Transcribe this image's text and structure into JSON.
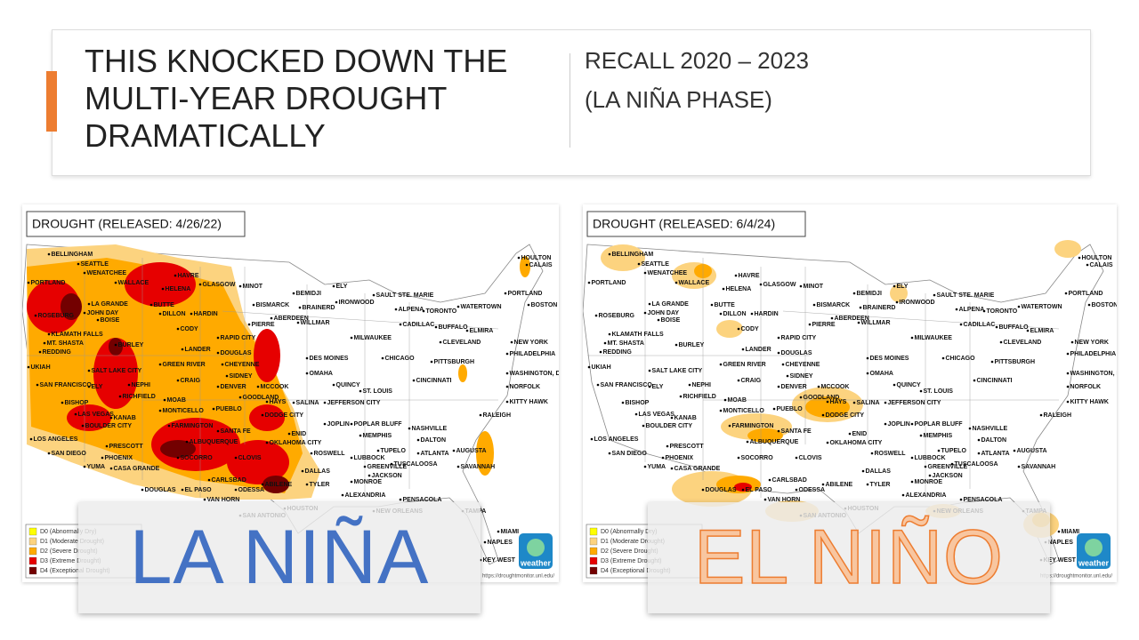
{
  "header": {
    "title_lines": [
      "THIS KNOCKED DOWN THE",
      "MULTI-YEAR DROUGHT",
      "DRAMATICALLY"
    ],
    "subtitle_lines": [
      "RECALL 2020 – 2023",
      "(LA NIÑA PHASE)"
    ]
  },
  "maps": [
    {
      "title": "DROUGHT (RELEASED: 4/26/22)",
      "overlay": "LA NIÑA"
    },
    {
      "title": "DROUGHT (RELEASED: 6/4/24)",
      "overlay": "EL NIÑO"
    }
  ],
  "legend": [
    "D0 (Abnormally Dry)",
    "D1 (Moderate Drought)",
    "D2 (Severe Drought)",
    "D3 (Extreme Drought)",
    "D4 (Exceptional Drought)"
  ],
  "source": "https://droughtmonitor.unl.edu/",
  "logo": "weather",
  "cities": [
    "BELLINGHAM",
    "SEATTLE",
    "WENATCHEE",
    "PORTLAND",
    "WALLACE",
    "HAVRE",
    "GLASGOW",
    "HELENA",
    "MINOT",
    "BEMIDJI",
    "ELY",
    "SAULT STE. MARIE",
    "HOULTON",
    "CALAIS",
    "LA GRANDE",
    "JOHN DAY",
    "BUTTE",
    "BISMARCK",
    "BRAINERD",
    "IRONWOOD",
    "ALPENA",
    "TORONTO",
    "WATERTOWN",
    "PORTLAND",
    "BOSTON",
    "ROSEBURG",
    "BOISE",
    "DILLON",
    "HARDIN",
    "ABERDEEN",
    "WILLMAR",
    "PIERRE",
    "CADILLAC",
    "BUFFALO",
    "ELMIRA",
    "KLAMATH FALLS",
    "CODY",
    "RAPID CITY",
    "MILWAUKEE",
    "CLEVELAND",
    "NEW YORK",
    "MT. SHASTA",
    "BURLEY",
    "REDDING",
    "LANDER",
    "DOUGLAS",
    "CHICAGO",
    "PITTSBURGH",
    "PHILADELPHIA",
    "UKIAH",
    "SALT LAKE CITY",
    "GREEN RIVER",
    "CHEYENNE",
    "DES MOINES",
    "SIDNEY",
    "OMAHA",
    "WASHINGTON, D.C.",
    "SAN FRANCISCO",
    "ELY",
    "NEPHI",
    "CRAIG",
    "DENVER",
    "MCCOOK",
    "QUINCY",
    "ST. LOUIS",
    "CINCINNATI",
    "NORFOLK",
    "RICHFIELD",
    "GOODLAND",
    "JEFFERSON CITY",
    "BISHOP",
    "MOAB",
    "HAYS",
    "SALINA",
    "KITTY HAWK",
    "LAS VEGAS",
    "KANAB",
    "MONTICELLO",
    "PUEBLO",
    "DODGE CITY",
    "POPLAR BLUFF",
    "NASHVILLE",
    "RALEIGH",
    "BOULDER CITY",
    "FARMINGTON",
    "SANTA FE",
    "ENID",
    "JOPLIN",
    "MEMPHIS",
    "LOS ANGELES",
    "ALBUQUERQUE",
    "OKLAHOMA CITY",
    "DALTON",
    "PRESCOTT",
    "TUPELO",
    "ATLANTA",
    "AUGUSTA",
    "SAN DIEGO",
    "PHOENIX",
    "SOCORRO",
    "CLOVIS",
    "ROSWELL",
    "LUBBOCK",
    "DALLAS",
    "GREENVILLE",
    "TUSCALOOSA",
    "SAVANNAH",
    "YUMA",
    "CASA GRANDE",
    "JACKSON",
    "CARLSBAD",
    "ABILENE",
    "TYLER",
    "MONROE",
    "DOUGLAS",
    "EL PASO",
    "ODESSA",
    "ALEXANDRIA",
    "PENSACOLA",
    "VAN HORN",
    "HOUSTON",
    "SAN ANTONIO",
    "NEW ORLEANS",
    "TAMPA",
    "MIAMI",
    "NAPLES",
    "KEY WEST"
  ]
}
